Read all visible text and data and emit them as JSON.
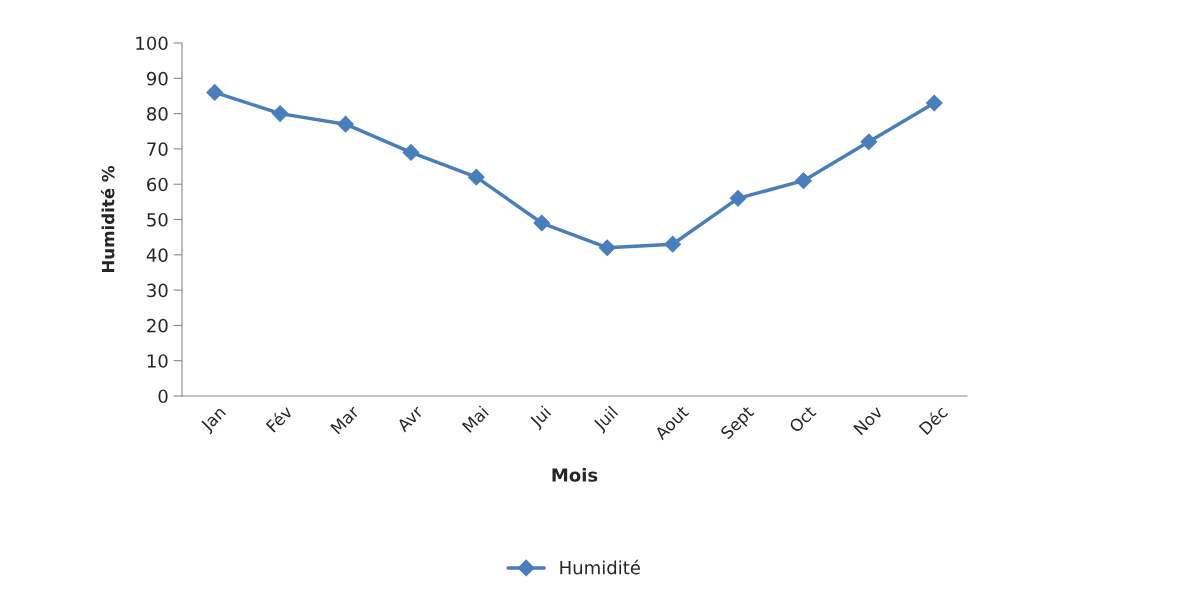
{
  "chart_data": {
    "type": "line",
    "xlabel": "Mois",
    "ylabel": "Humidité %",
    "categories": [
      "Jan",
      "Fév",
      "Mar",
      "Avr",
      "Mai",
      "Jui",
      "Juil",
      "Aout",
      "Sept",
      "Oct",
      "Nov",
      "Déc"
    ],
    "series": [
      {
        "name": "Humidité",
        "color": "#4a7ebb",
        "values": [
          86,
          80,
          77,
          69,
          62,
          49,
          42,
          43,
          56,
          61,
          72,
          83
        ]
      }
    ],
    "ylim": [
      0,
      100
    ],
    "yticks": [
      0,
      10,
      20,
      30,
      40,
      50,
      60,
      70,
      80,
      90,
      100
    ],
    "marker": "diamond",
    "line_style": "solid",
    "grid": false,
    "legend": "bottom"
  }
}
